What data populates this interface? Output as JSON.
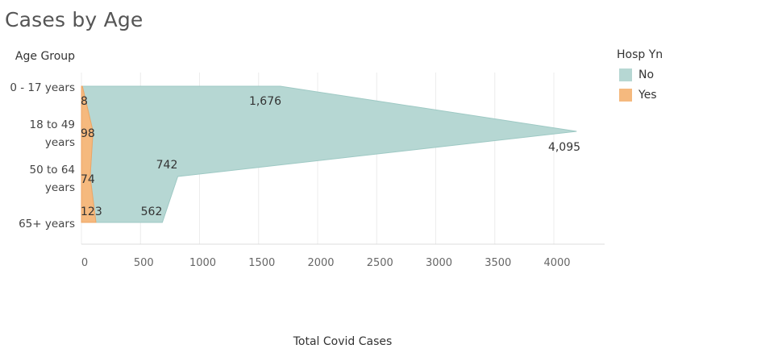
{
  "chart_data": {
    "type": "area",
    "title": "Cases by Age",
    "orientation": "horizontal",
    "stacked": true,
    "ylabel": "Age Group",
    "xlabel": "Total Covid Cases",
    "categories": [
      "0 - 17 years",
      "18 to 49 years",
      "50 to 64 years",
      "65+ years"
    ],
    "series": [
      {
        "name": "No",
        "color": "#b6d7d3",
        "values": [
          1676,
          4095,
          742,
          562
        ],
        "labels": [
          "1,676",
          "4,095",
          "742",
          "562"
        ]
      },
      {
        "name": "Yes",
        "color": "#f5b97e",
        "values": [
          8,
          98,
          74,
          123
        ],
        "labels": [
          "8",
          "98",
          "74",
          "123"
        ]
      }
    ],
    "xlim": [
      0,
      4400
    ],
    "xticks": [
      0,
      500,
      1000,
      1500,
      2000,
      2500,
      3000,
      3500,
      4000
    ],
    "grid": true,
    "legend": {
      "title": "Hosp Yn",
      "position": "right"
    }
  }
}
